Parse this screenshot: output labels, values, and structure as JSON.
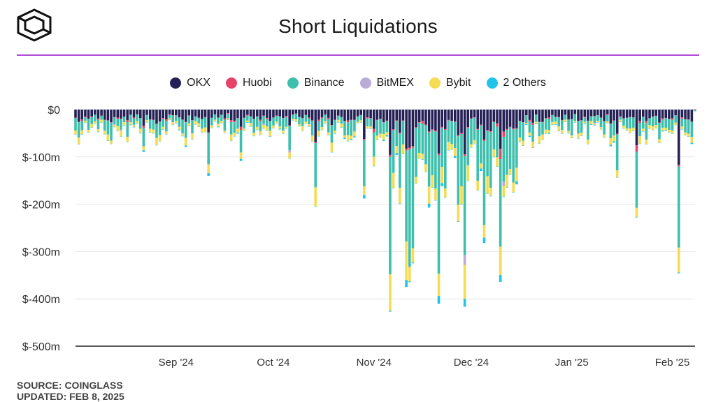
{
  "header": {
    "title": "Short Liquidations"
  },
  "legend": [
    {
      "name": "OKX",
      "color": "#252156"
    },
    {
      "name": "Huobi",
      "color": "#e8426a"
    },
    {
      "name": "Binance",
      "color": "#3ebfad"
    },
    {
      "name": "BitMEX",
      "color": "#b9acd9"
    },
    {
      "name": "Bybit",
      "color": "#f5dc52"
    },
    {
      "name": "2 Others",
      "color": "#20c4e6"
    }
  ],
  "footer": {
    "source": "SOURCE: COINGLASS",
    "updated": "UPDATED: FEB 8, 2025"
  },
  "chart_data": {
    "type": "bar",
    "stacked": true,
    "title": "Short Liquidations",
    "units": "USD millions (plotted as negative values)",
    "ylim": [
      -500,
      0
    ],
    "yticks": [
      0,
      -100,
      -200,
      -300,
      -400,
      -500
    ],
    "ytick_labels": [
      "$0",
      "$-100m",
      "$-200m",
      "$-300m",
      "$-400m",
      "$-500m"
    ],
    "xtick_labels": [
      "Sep '24",
      "Oct '24",
      "Nov '24",
      "Dec '24",
      "Jan '25",
      "Feb '25"
    ],
    "xtick_dates": [
      "2024-09-01",
      "2024-10-01",
      "2024-11-01",
      "2024-12-01",
      "2025-01-01",
      "2025-02-01"
    ],
    "date_range": [
      "2024-08-01",
      "2025-02-08"
    ],
    "grid": true,
    "legend_position": "top-center",
    "series_order": [
      "OKX",
      "Huobi",
      "Binance",
      "BitMEX",
      "Bybit",
      "2 Others"
    ],
    "notable_bars": [
      {
        "date": "2024-09-11",
        "total": -140
      },
      {
        "date": "2024-10-14",
        "total": -205
      },
      {
        "date": "2024-10-29",
        "total": -188
      },
      {
        "date": "2024-11-06",
        "total": -427
      },
      {
        "date": "2024-11-11",
        "total": -375
      },
      {
        "date": "2024-11-12",
        "total": -365
      },
      {
        "date": "2024-11-13",
        "total": -325
      },
      {
        "date": "2024-12-05",
        "total": -282
      },
      {
        "date": "2025-01-21",
        "total": -228
      },
      {
        "date": "2025-02-03",
        "total": -346
      },
      {
        "date": "2025-02-08",
        "total": -3
      }
    ]
  }
}
